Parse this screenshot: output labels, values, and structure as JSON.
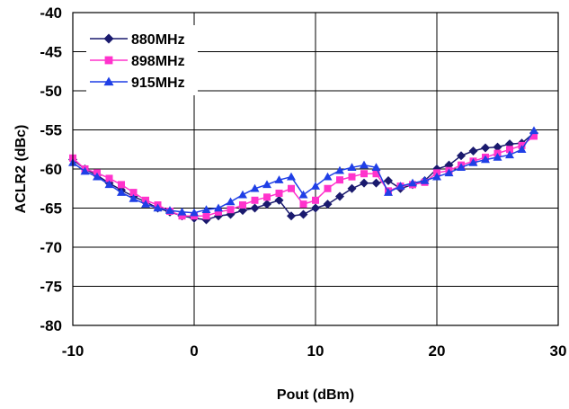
{
  "chart_data": {
    "type": "line",
    "title": "",
    "xlabel": "Pout (dBm)",
    "ylabel": "ACLR2 (dBc)",
    "xlim": [
      -10,
      30
    ],
    "ylim": [
      -80,
      -40
    ],
    "xticks": [
      -10,
      0,
      10,
      20,
      30
    ],
    "xtick_labels": [
      "-10",
      "0",
      "10",
      "20",
      "30"
    ],
    "yticks": [
      -40,
      -45,
      -50,
      -55,
      -60,
      -65,
      -70,
      -75,
      -80
    ],
    "ytick_labels": [
      "-40",
      "-45",
      "-50",
      "-55",
      "-60",
      "-65",
      "-70",
      "-75",
      "-80"
    ],
    "grid": true,
    "legend_position": "top-left",
    "series": [
      {
        "name": "880MHz",
        "color": "#1a1a6e",
        "marker": "diamond",
        "x": [
          -10,
          -9,
          -8,
          -7,
          -6,
          -5,
          -4,
          -3,
          -2,
          -1,
          0,
          1,
          2,
          3,
          4,
          5,
          6,
          7,
          8,
          9,
          10,
          11,
          12,
          13,
          14,
          15,
          16,
          17,
          18,
          19,
          20,
          21,
          22,
          23,
          24,
          25,
          26,
          27,
          28
        ],
        "y": [
          -58.8,
          -60,
          -60.8,
          -61.8,
          -62.7,
          -63.5,
          -64.2,
          -65,
          -65.5,
          -66,
          -66.3,
          -66.5,
          -66,
          -65.8,
          -65.3,
          -65,
          -64.5,
          -64,
          -66,
          -65.8,
          -65,
          -64.5,
          -63.5,
          -62.5,
          -61.8,
          -61.8,
          -61.5,
          -62.5,
          -62,
          -61.5,
          -60,
          -59.5,
          -58.3,
          -57.7,
          -57.3,
          -57.2,
          -56.8,
          -56.7,
          -55.4
        ]
      },
      {
        "name": "898MHz",
        "color": "#ff33cc",
        "marker": "square",
        "x": [
          -10,
          -9,
          -8,
          -7,
          -6,
          -5,
          -4,
          -3,
          -2,
          -1,
          0,
          1,
          2,
          3,
          4,
          5,
          6,
          7,
          8,
          9,
          10,
          11,
          12,
          13,
          14,
          15,
          16,
          17,
          18,
          19,
          20,
          21,
          22,
          23,
          24,
          25,
          26,
          27,
          28
        ],
        "y": [
          -58.6,
          -60,
          -60.5,
          -61.2,
          -62,
          -63,
          -64,
          -64.6,
          -65.4,
          -66,
          -66,
          -66,
          -65.5,
          -65.2,
          -64.6,
          -64,
          -63.6,
          -63.1,
          -62.5,
          -64.5,
          -64,
          -62.5,
          -61.4,
          -61,
          -60.6,
          -60.6,
          -62.8,
          -62.2,
          -62,
          -61.7,
          -60.5,
          -60.2,
          -59.5,
          -59,
          -58.5,
          -58,
          -57.5,
          -57,
          -55.8
        ]
      },
      {
        "name": "915MHz",
        "color": "#1f3fe6",
        "marker": "triangle",
        "x": [
          -10,
          -9,
          -8,
          -7,
          -6,
          -5,
          -4,
          -3,
          -2,
          -1,
          0,
          1,
          2,
          3,
          4,
          5,
          6,
          7,
          8,
          9,
          10,
          11,
          12,
          13,
          14,
          15,
          16,
          17,
          18,
          19,
          20,
          21,
          22,
          23,
          24,
          25,
          26,
          27,
          28
        ],
        "y": [
          -59.2,
          -60.3,
          -61,
          -62,
          -63,
          -63.8,
          -64.5,
          -65,
          -65.3,
          -65.5,
          -65.6,
          -65.2,
          -65,
          -64.2,
          -63.3,
          -62.5,
          -62,
          -61.4,
          -61,
          -63.3,
          -62.2,
          -61,
          -60.2,
          -59.8,
          -59.5,
          -59.8,
          -63,
          -62.2,
          -61.8,
          -61.5,
          -61,
          -60.5,
          -59.8,
          -59.2,
          -58.8,
          -58.5,
          -58.2,
          -57.5,
          -55.1
        ]
      }
    ]
  }
}
